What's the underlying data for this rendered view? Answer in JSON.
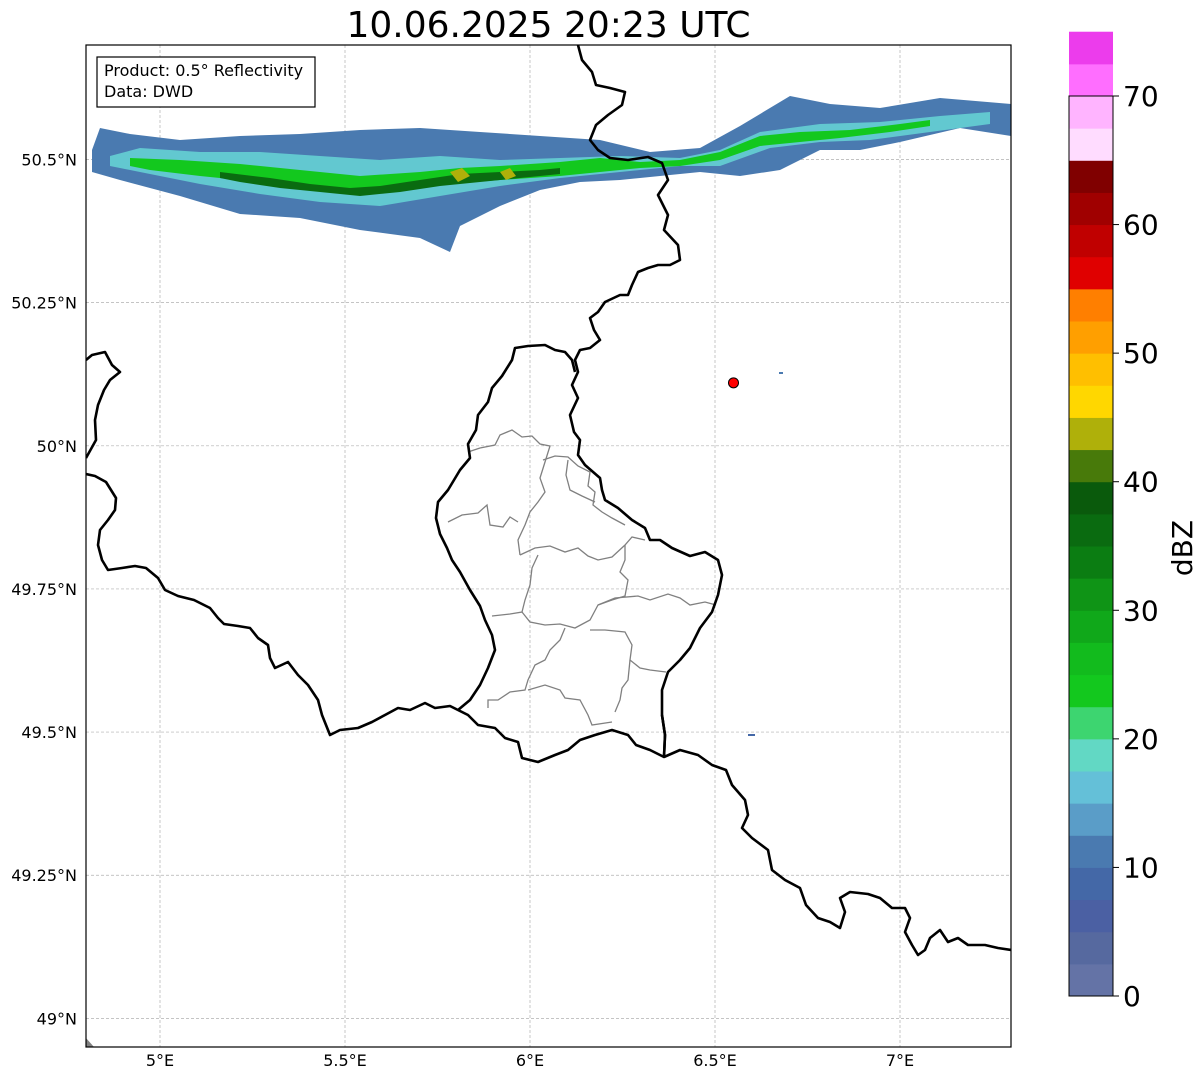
{
  "title": "10.06.2025 20:23 UTC",
  "info_box": {
    "product": "Product: 0.5° Reflectivity",
    "data_source": "Data: DWD"
  },
  "map": {
    "lon_range": [
      4.8,
      7.3
    ],
    "lat_range": [
      48.95,
      50.7
    ],
    "x_ticks": [
      {
        "value": 5.0,
        "label": "5°E"
      },
      {
        "value": 5.5,
        "label": "5.5°E"
      },
      {
        "value": 6.0,
        "label": "6°E"
      },
      {
        "value": 6.5,
        "label": "6.5°E"
      },
      {
        "value": 7.0,
        "label": "7°E"
      }
    ],
    "y_ticks": [
      {
        "value": 49.0,
        "label": "49°N"
      },
      {
        "value": 49.25,
        "label": "49.25°N"
      },
      {
        "value": 49.5,
        "label": "49.5°N"
      },
      {
        "value": 49.75,
        "label": "49.75°N"
      },
      {
        "value": 50.0,
        "label": "50°N"
      },
      {
        "value": 50.25,
        "label": "50.25°N"
      },
      {
        "value": 50.5,
        "label": "50.5°N"
      }
    ],
    "grid": true,
    "marker": {
      "lon": 6.55,
      "lat": 50.11,
      "color": "#ff0000"
    }
  },
  "colorbar": {
    "label": "dBZ",
    "min": 0,
    "max": 70,
    "step": 2.5,
    "ticks": [
      {
        "value": 0,
        "label": "0"
      },
      {
        "value": 10,
        "label": "10"
      },
      {
        "value": 20,
        "label": "20"
      },
      {
        "value": 30,
        "label": "30"
      },
      {
        "value": 40,
        "label": "40"
      },
      {
        "value": 50,
        "label": "50"
      },
      {
        "value": 60,
        "label": "60"
      },
      {
        "value": 70,
        "label": "70"
      }
    ],
    "colors": [
      "#6473a6",
      "#56699f",
      "#4b60a3",
      "#4468a7",
      "#4a7ab0",
      "#5a9dc8",
      "#64c0d8",
      "#62d8c4",
      "#3dd570",
      "#13c81e",
      "#12bb1d",
      "#10a81a",
      "#0f9416",
      "#0b7d12",
      "#0a6b10",
      "#0a5a0c",
      "#487a0a",
      "#afb00a",
      "#ffd700",
      "#ffbf00",
      "#ff9f00",
      "#ff7f00",
      "#e00000",
      "#c00000",
      "#a00000",
      "#800000",
      "#ffdcff",
      "#ffb4ff",
      "#ff6eff",
      "#ec3cec"
    ]
  }
}
